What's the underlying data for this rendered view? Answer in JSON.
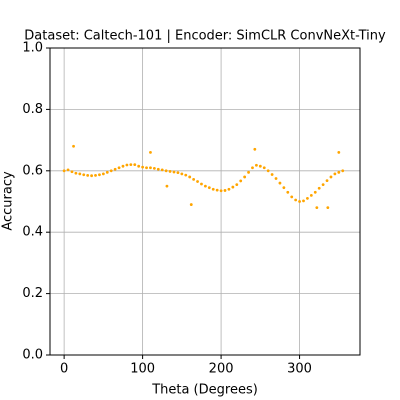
{
  "chart_data": {
    "type": "scatter",
    "title": "Dataset: Caltech-101 | Encoder: SimCLR ConvNeXt-Tiny",
    "xlabel": "Theta (Degrees)",
    "ylabel": "Accuracy",
    "series": [
      {
        "color": "#ffa500",
        "x": [
          0,
          5,
          10,
          15,
          20,
          25,
          30,
          35,
          40,
          45,
          50,
          55,
          60,
          65,
          70,
          75,
          80,
          85,
          90,
          95,
          100,
          105,
          110,
          115,
          120,
          125,
          130,
          135,
          140,
          145,
          150,
          155,
          160,
          165,
          170,
          175,
          180,
          185,
          190,
          195,
          200,
          205,
          210,
          215,
          220,
          225,
          230,
          235,
          240,
          245,
          250,
          255,
          260,
          265,
          270,
          275,
          280,
          285,
          290,
          295,
          300,
          305,
          310,
          315,
          320,
          325,
          330,
          335,
          340,
          345,
          350,
          355,
          12,
          110,
          131,
          162,
          243,
          322,
          336,
          350
        ],
        "values": [
          0.6,
          0.603,
          0.597,
          0.592,
          0.59,
          0.587,
          0.585,
          0.584,
          0.585,
          0.587,
          0.59,
          0.595,
          0.6,
          0.605,
          0.61,
          0.615,
          0.619,
          0.62,
          0.62,
          0.615,
          0.612,
          0.61,
          0.61,
          0.608,
          0.605,
          0.603,
          0.6,
          0.598,
          0.596,
          0.594,
          0.59,
          0.586,
          0.58,
          0.572,
          0.565,
          0.557,
          0.55,
          0.545,
          0.54,
          0.537,
          0.535,
          0.536,
          0.54,
          0.547,
          0.555,
          0.567,
          0.58,
          0.595,
          0.61,
          0.618,
          0.615,
          0.61,
          0.6,
          0.588,
          0.575,
          0.56,
          0.545,
          0.53,
          0.515,
          0.505,
          0.5,
          0.502,
          0.51,
          0.52,
          0.53,
          0.543,
          0.555,
          0.568,
          0.58,
          0.59,
          0.595,
          0.6,
          0.68,
          0.66,
          0.55,
          0.49,
          0.67,
          0.48,
          0.48,
          0.66
        ]
      }
    ],
    "xlim": [
      -18,
      377
    ],
    "xticks": [
      0,
      100,
      200,
      300
    ],
    "ylim": [
      0,
      1
    ],
    "yticks": [
      {
        "value": 0,
        "label": "0.0"
      },
      0.2,
      0.4,
      0.6,
      0.8,
      {
        "value": 1,
        "label": "1.0"
      }
    ],
    "grid": true
  }
}
